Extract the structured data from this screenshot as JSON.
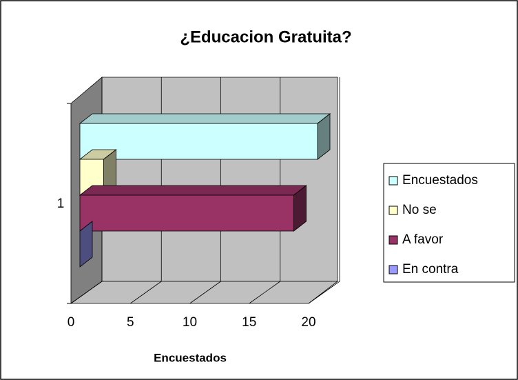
{
  "chart_data": {
    "type": "bar3d",
    "title": "¿Educacion Gratuita?",
    "x_label": "Encuestados",
    "categories": [
      "1"
    ],
    "series": [
      {
        "name": "Encuestados",
        "color": "#CCFFFF",
        "values": [
          20
        ]
      },
      {
        "name": "No se",
        "color": "#FFFFCC",
        "values": [
          2
        ]
      },
      {
        "name": "A favor",
        "color": "#993366",
        "values": [
          18
        ]
      },
      {
        "name": "En contra",
        "color": "#9999FF",
        "values": [
          0
        ]
      }
    ],
    "xlim": [
      0,
      20
    ],
    "xticks": [
      0,
      5,
      10,
      15,
      20
    ],
    "grid": true,
    "legend": "right"
  }
}
